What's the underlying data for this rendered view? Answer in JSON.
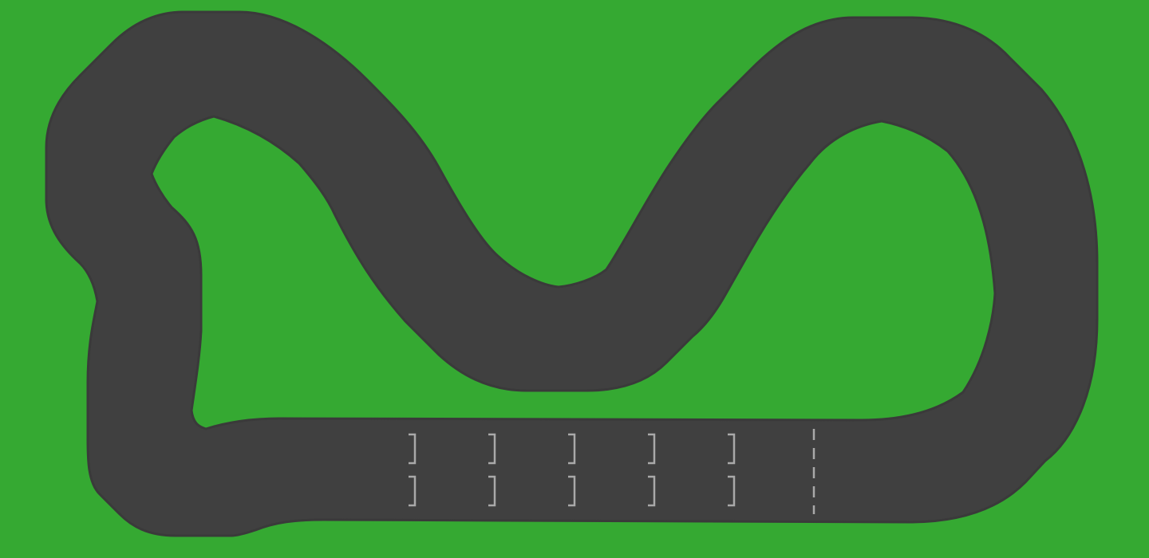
{
  "scene": {
    "type": "race-track-top-down",
    "colors": {
      "grass": "#35a932",
      "asphalt": "#404040",
      "track_edge": "#3a3a3a",
      "grid_markings": "#a9a9a9"
    },
    "starting_grid": {
      "rows": 2,
      "slots_per_row": 5,
      "facing": "right"
    },
    "start_finish_line": {
      "style": "dashed",
      "color": "#a9a9a9"
    }
  }
}
